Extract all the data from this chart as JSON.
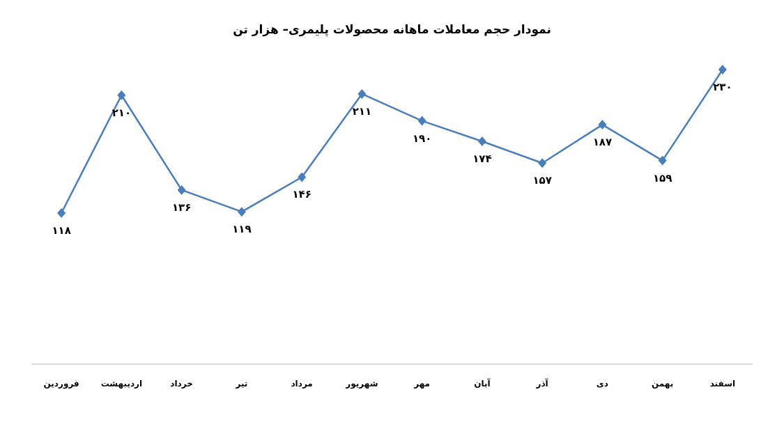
{
  "chart_data": {
    "type": "line",
    "title": "نمودار حجم معاملات ماهانه محصولات پلیمری– هزار تن",
    "categories": [
      "فروردین",
      "اردیبهشت",
      "خرداد",
      "تیر",
      "مرداد",
      "شهریور",
      "مهر",
      "آبان",
      "آذر",
      "دی",
      "بهمن",
      "اسفند"
    ],
    "series": [
      {
        "color": "#4a7ebb",
        "values": [
          118,
          210,
          136,
          119,
          146,
          211,
          190,
          174,
          157,
          187,
          159,
          230
        ],
        "value_labels": [
          "۱۱۸",
          "۲۱۰",
          "۱۳۶",
          "۱۱۹",
          "۱۴۶",
          "۲۱۱",
          "۱۹۰",
          "۱۷۴",
          "۱۵۷",
          "۱۸۷",
          "۱۵۹",
          "۲۳۰"
        ]
      }
    ],
    "marker": "diamond"
  }
}
